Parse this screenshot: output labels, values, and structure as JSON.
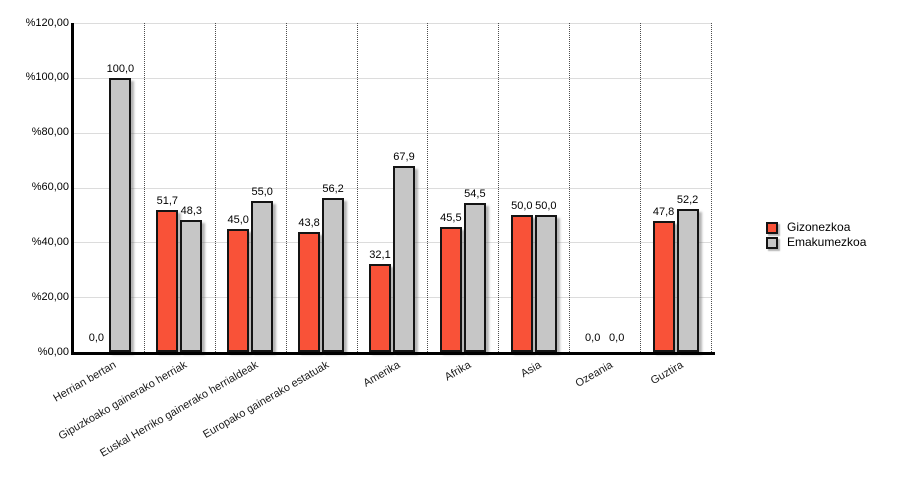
{
  "chart_data": {
    "type": "bar",
    "title": "",
    "xlabel": "",
    "ylabel": "",
    "categories": [
      "Herrian bertan",
      "Gipuzkoako gainerako herriak",
      "Euskal Herriko gainerako herrialdeak",
      "Europako gainerako estatuak",
      "Amerika",
      "Afrika",
      "Asia",
      "Ozeania",
      "Guztira"
    ],
    "series": [
      {
        "name": "Gizonezkoa",
        "color": "#f95238",
        "values": [
          0.0,
          51.7,
          45.0,
          43.8,
          32.1,
          45.5,
          50.0,
          0.0,
          47.8
        ],
        "value_labels": [
          "0,0",
          "51,7",
          "45,0",
          "43,8",
          "32,1",
          "45,5",
          "50,0",
          "0,0",
          "47,8"
        ]
      },
      {
        "name": "Emakumezkoa",
        "color": "#c6c6c6",
        "values": [
          100.0,
          48.3,
          55.0,
          56.2,
          67.9,
          54.5,
          50.0,
          0.0,
          52.2
        ],
        "value_labels": [
          "100,0",
          "48,3",
          "55,0",
          "56,2",
          "67,9",
          "54,5",
          "50,0",
          "0,0",
          "52,2"
        ]
      }
    ],
    "y_axis": {
      "min": 0,
      "max": 120,
      "step": 20,
      "tick_labels": [
        "%0,00",
        "%20,00",
        "%40,00",
        "%60,00",
        "%80,00",
        "%100,00",
        "%120,00"
      ]
    },
    "legend": {
      "position": "right",
      "items": [
        "Gizonezkoa",
        "Emakumezkoa"
      ]
    },
    "grid": {
      "horizontal_solid": true,
      "vertical_dotted_separators": true
    },
    "colors": {
      "series1": "#f95238",
      "series2": "#c6c6c6",
      "bar_outline": "#141414",
      "gridline": "#dcdcdc",
      "axis": "#000000",
      "background": "#ffffff"
    }
  }
}
